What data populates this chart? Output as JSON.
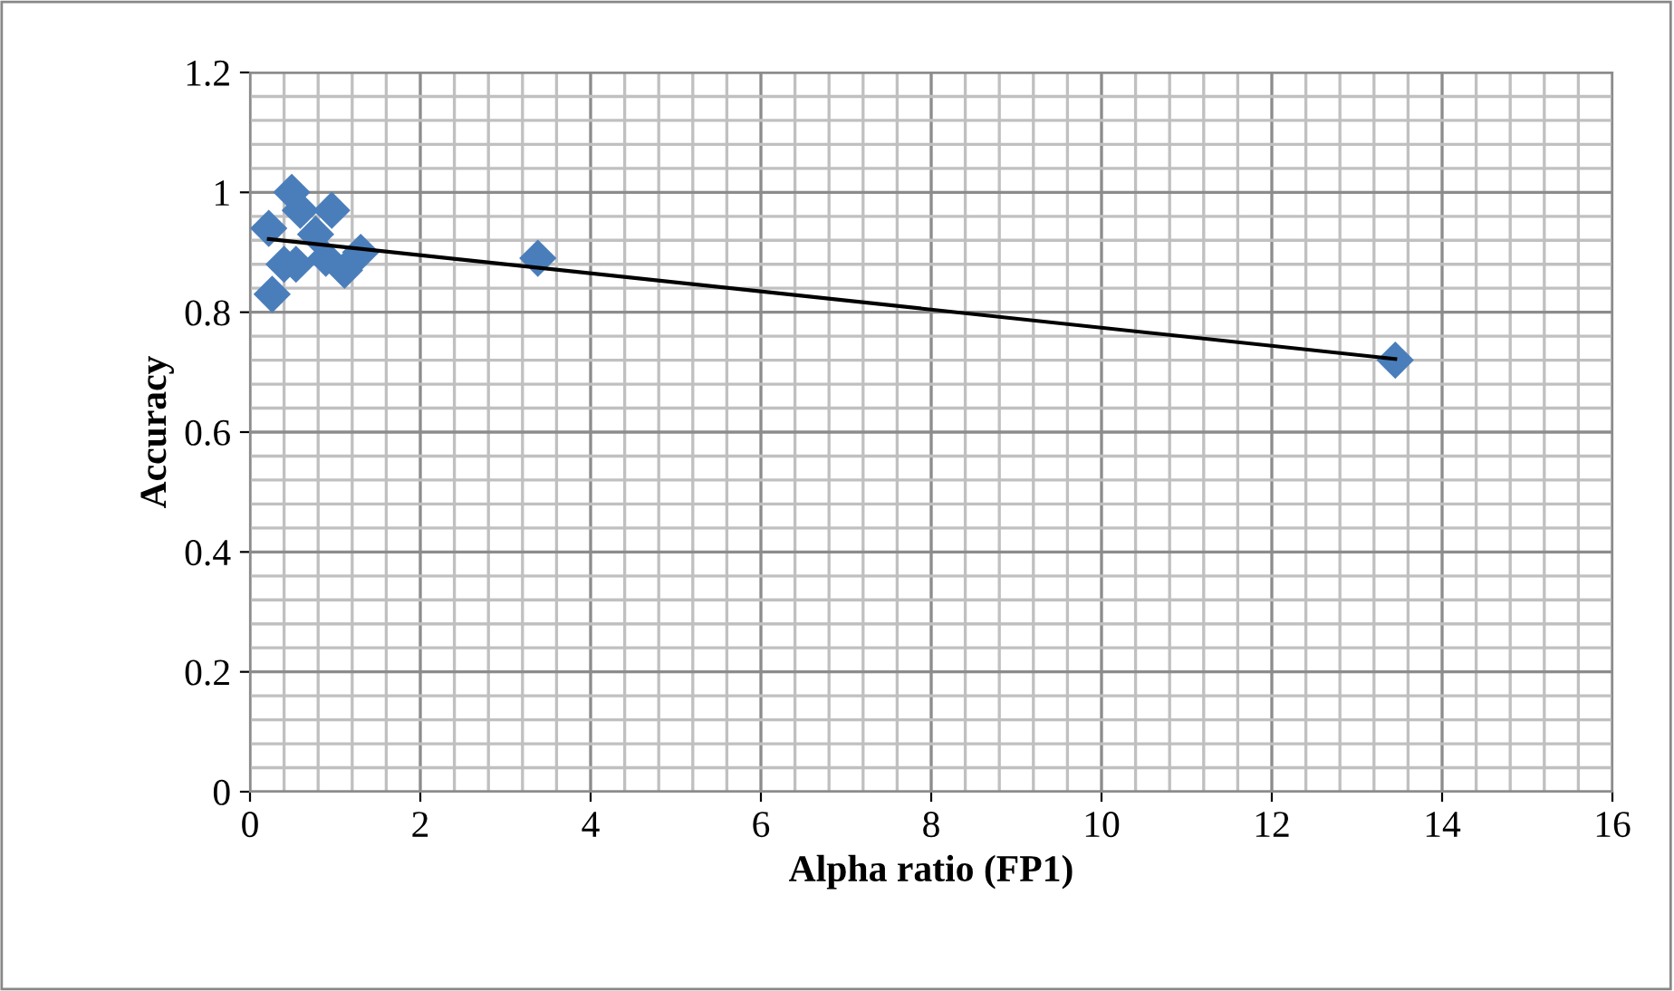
{
  "chart_data": {
    "type": "scatter",
    "xlabel": "Alpha ratio (FP1)",
    "ylabel": "Accuracy",
    "xlim": [
      0,
      16
    ],
    "xticks": [
      0,
      2,
      4,
      6,
      8,
      10,
      12,
      14,
      16
    ],
    "ylim": [
      0,
      1.2
    ],
    "yticks": [
      0,
      0.2,
      0.4,
      0.6,
      0.8,
      1,
      1.2
    ],
    "grid": true,
    "series": [
      {
        "marker": "diamond",
        "color": "#4a7ebb",
        "x": [
          0.49,
          0.22,
          0.59,
          0.96,
          0.77,
          0.54,
          0.4,
          0.89,
          1.11,
          1.3,
          0.26,
          3.38,
          13.45
        ],
        "values": [
          1.0,
          0.94,
          0.97,
          0.97,
          0.93,
          0.88,
          0.88,
          0.89,
          0.87,
          0.9,
          0.83,
          0.89,
          0.72
        ]
      },
      {
        "type": "line",
        "color": "#000000",
        "x": [
          0.22,
          13.45
        ],
        "values": [
          0.922,
          0.722
        ]
      }
    ]
  }
}
